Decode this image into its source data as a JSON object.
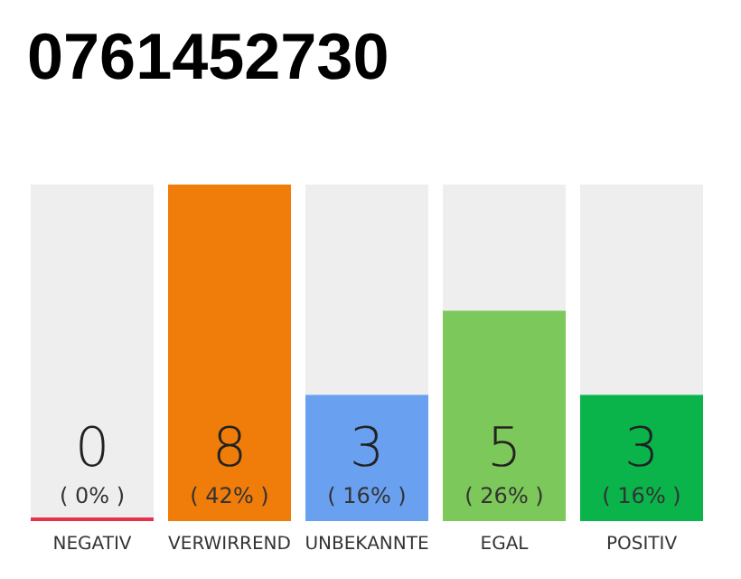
{
  "chart_data": {
    "type": "bar",
    "title": "0761452730",
    "categories": [
      "NEGATIV",
      "VERWIRREND",
      "UNBEKANNTE",
      "EGAL",
      "POSITIV"
    ],
    "values": [
      0,
      8,
      3,
      5,
      3
    ],
    "colors": [
      "#e8304a",
      "#f07d0a",
      "#6aa0f0",
      "#7dc85a",
      "#0ab44b"
    ],
    "value_labels": [
      "0\n( 0% )",
      "8\n( 42% )",
      "3\n( 16% )",
      "5\n( 26% )",
      "3\n( 16% )"
    ],
    "grid": false
  }
}
